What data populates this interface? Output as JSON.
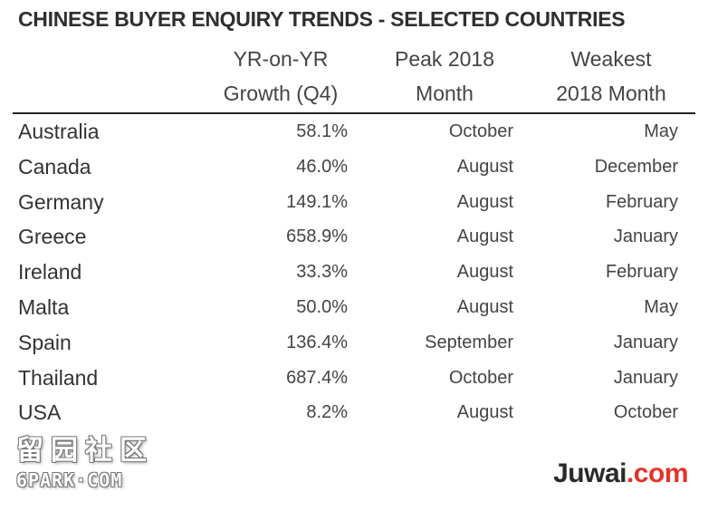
{
  "title": "CHINESE BUYER ENQUIRY TRENDS - SELECTED COUNTRIES",
  "headers": {
    "growth": [
      "YR-on-YR",
      "Growth (Q4)"
    ],
    "peak": [
      "Peak 2018",
      "Month"
    ],
    "weakest": [
      "Weakest",
      "2018 Month"
    ]
  },
  "chart_data": {
    "type": "table",
    "title": "CHINESE BUYER ENQUIRY TRENDS - SELECTED COUNTRIES",
    "columns": [
      "",
      "YR-on-YR Growth (Q4)",
      "Peak 2018 Month",
      "Weakest 2018 Month"
    ],
    "rows": [
      {
        "country": "Australia",
        "growth": "58.1%",
        "peak": "October",
        "weakest": "May"
      },
      {
        "country": "Canada",
        "growth": "46.0%",
        "peak": "August",
        "weakest": "December"
      },
      {
        "country": "Germany",
        "growth": "149.1%",
        "peak": "August",
        "weakest": "February"
      },
      {
        "country": "Greece",
        "growth": "658.9%",
        "peak": "August",
        "weakest": "January"
      },
      {
        "country": "Ireland",
        "growth": "33.3%",
        "peak": "August",
        "weakest": "February"
      },
      {
        "country": "Malta",
        "growth": "50.0%",
        "peak": "August",
        "weakest": "May"
      },
      {
        "country": "Spain",
        "growth": "136.4%",
        "peak": "September",
        "weakest": "January"
      },
      {
        "country": "Thailand",
        "growth": "687.4%",
        "peak": "October",
        "weakest": "January"
      },
      {
        "country": "USA",
        "growth": "8.2%",
        "peak": "August",
        "weakest": "October"
      }
    ]
  },
  "watermark": {
    "cn": "留园社区",
    "en": "6PARK·COM"
  },
  "logo": {
    "part1": "Juwai",
    "part2": ".com"
  }
}
